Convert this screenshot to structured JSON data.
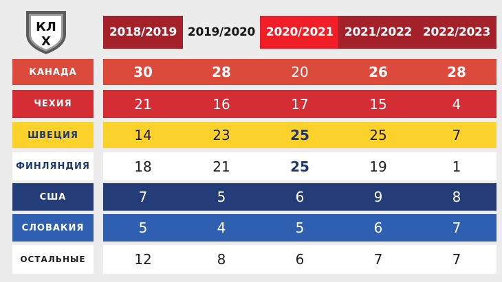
{
  "colors": {
    "background": "#ececec",
    "header_dark_red": "#a5212a",
    "header_bright_red": "#f01e26",
    "canada": "#dc4a3c",
    "czech": "#d42d33",
    "sweden": "#fbd12c",
    "finland": "#ffffff",
    "usa": "#243c78",
    "slovakia": "#2f5fb0",
    "others": "#ffffff"
  },
  "logo": {
    "icon": "khl-shield-icon",
    "letters_top": "КЛ",
    "letters_bottom": "Х"
  },
  "table": {
    "headers": [
      "2018/2019",
      "2019/2020",
      "2020/2021",
      "2021/2022",
      "2022/2023"
    ],
    "rows": [
      {
        "label": "КАНАДА",
        "values": [
          "30",
          "28",
          "20",
          "26",
          "28"
        ]
      },
      {
        "label": "ЧЕХИЯ",
        "values": [
          "21",
          "16",
          "17",
          "15",
          "4"
        ]
      },
      {
        "label": "ШВЕЦИЯ",
        "values": [
          "14",
          "23",
          "25",
          "25",
          "7"
        ]
      },
      {
        "label": "ФИНЛЯНДИЯ",
        "values": [
          "18",
          "21",
          "25",
          "19",
          "1"
        ]
      },
      {
        "label": "США",
        "values": [
          "7",
          "5",
          "6",
          "9",
          "8"
        ]
      },
      {
        "label": "СЛОВАКИЯ",
        "values": [
          "5",
          "4",
          "5",
          "6",
          "7"
        ]
      },
      {
        "label": "ОСТАЛЬНЫЕ",
        "values": [
          "12",
          "8",
          "6",
          "7",
          "7"
        ]
      }
    ]
  }
}
